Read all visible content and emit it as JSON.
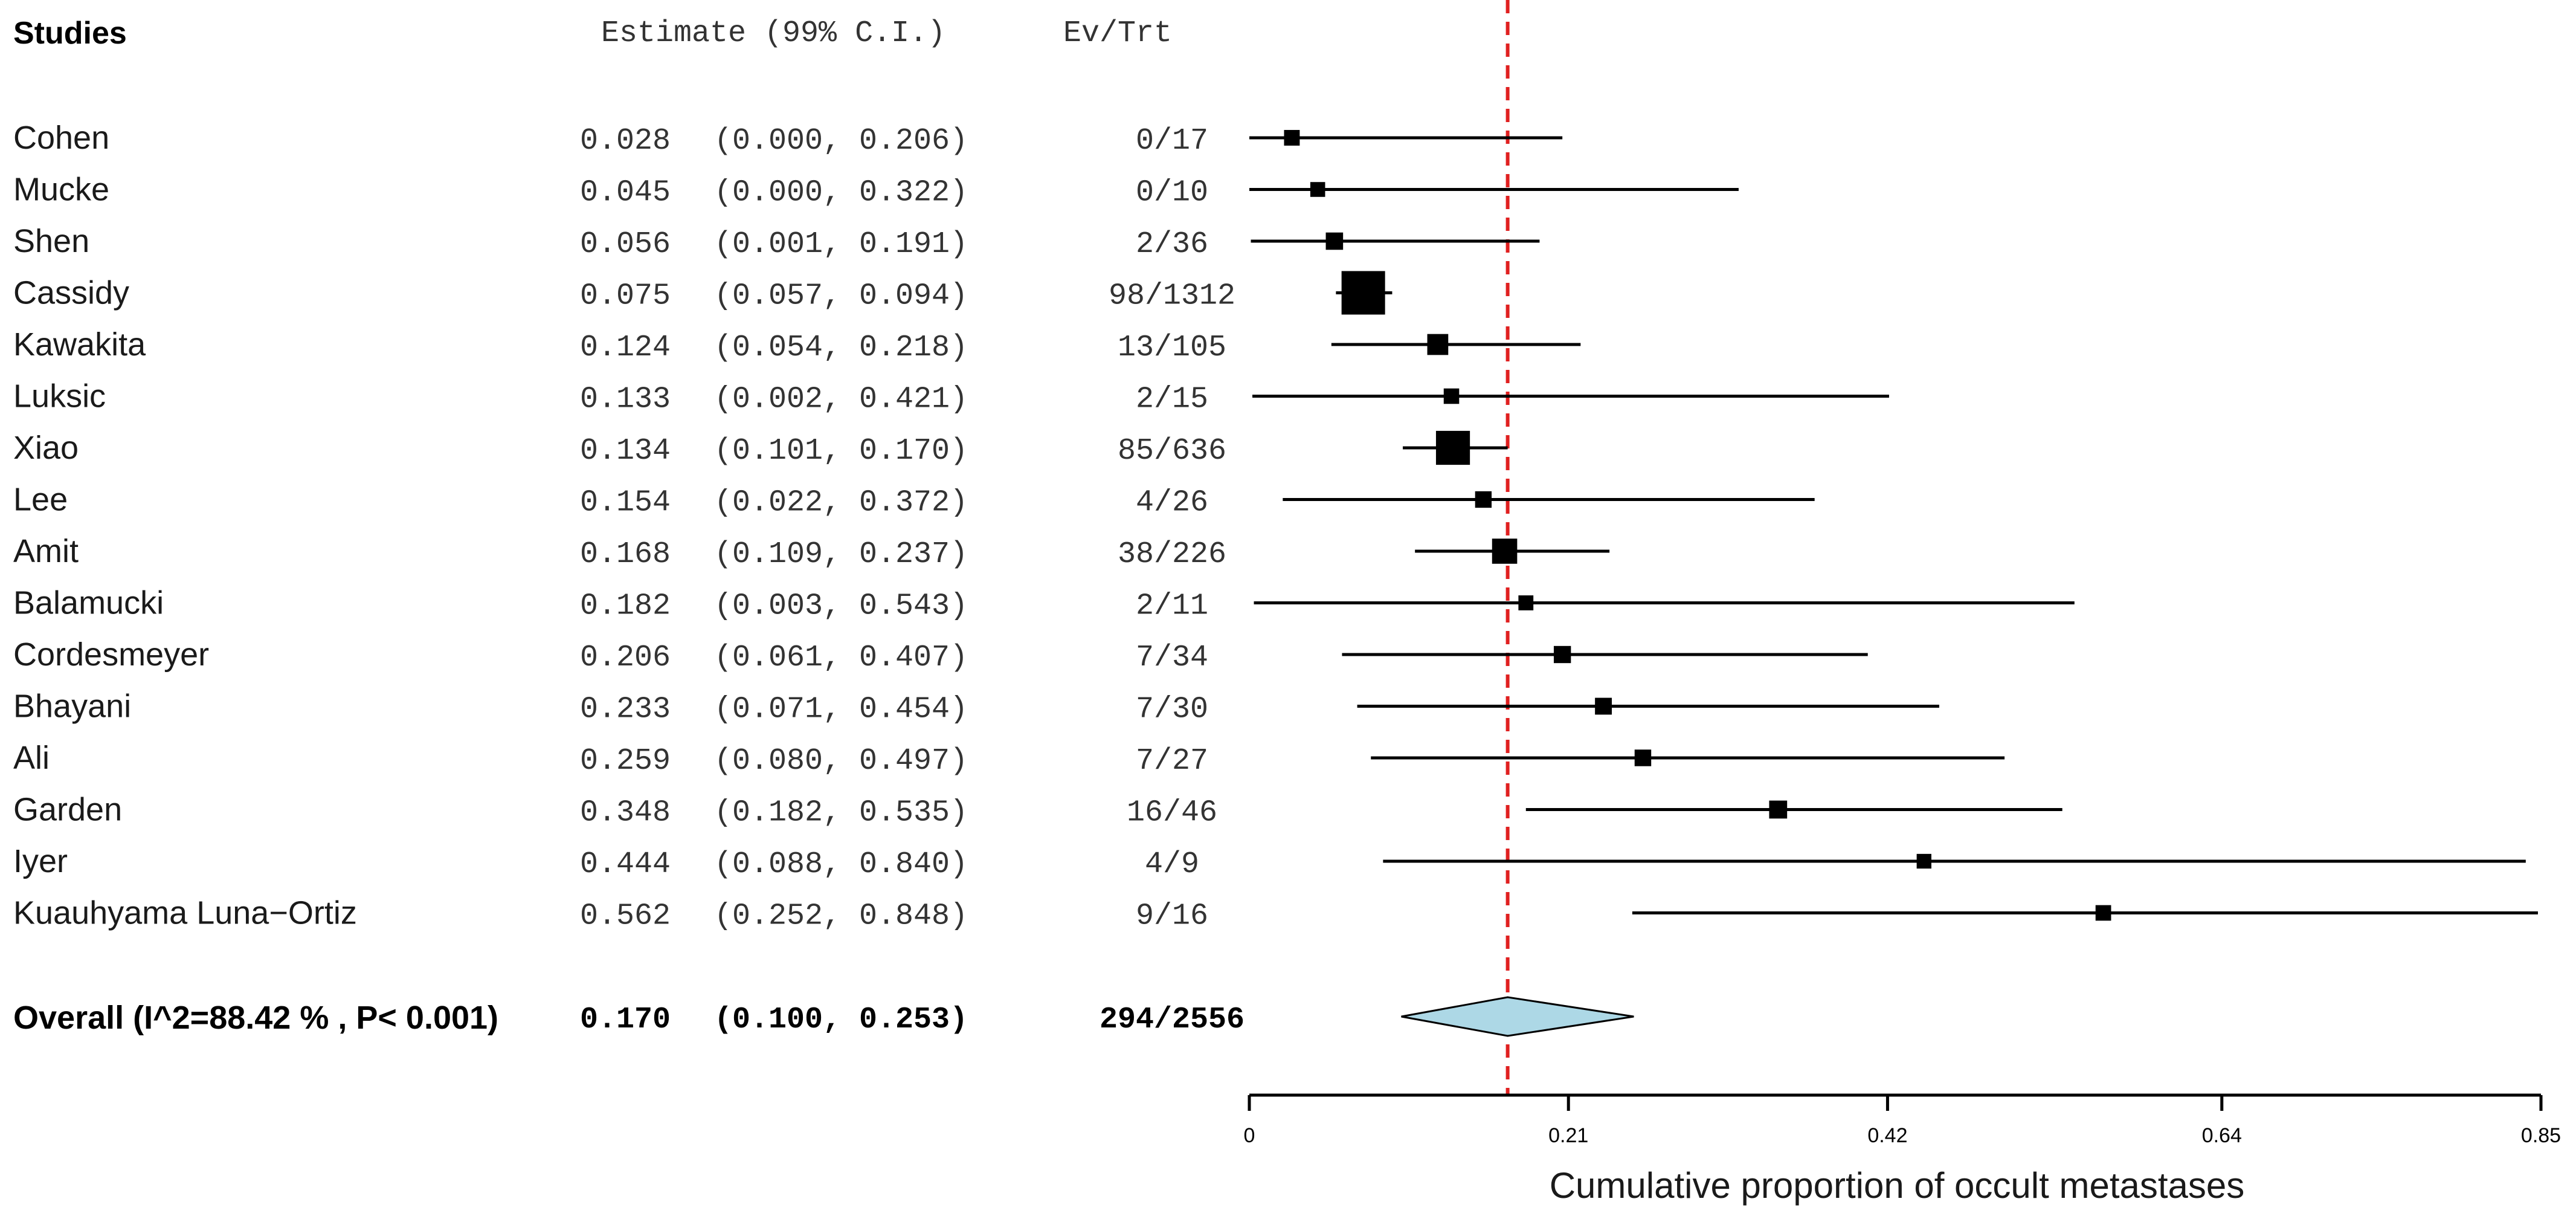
{
  "chart_data": {
    "type": "forest",
    "headers": {
      "studies": "Studies",
      "estimate": "Estimate (99% C.I.)",
      "events": "Ev/Trt"
    },
    "xlabel": "Cumulative proportion of occult metastases",
    "xlim": [
      0,
      0.85
    ],
    "ticks": [
      0,
      0.21,
      0.42,
      0.64,
      0.85
    ],
    "tick_labels": [
      "0",
      "0.21",
      "0.42",
      "0.64",
      "0.85"
    ],
    "reference_line": 0.17,
    "colors": {
      "reference": "#e02020",
      "diamond_fill": "#add8e6",
      "marker": "#000000"
    },
    "studies": [
      {
        "name": "Cohen",
        "est": 0.028,
        "lo": 0.0,
        "hi": 0.206,
        "est_text": "0.028",
        "ci_text": "(0.000, 0.206)",
        "ev_text": "0/17",
        "n": 17
      },
      {
        "name": "Mucke",
        "est": 0.045,
        "lo": 0.0,
        "hi": 0.322,
        "est_text": "0.045",
        "ci_text": "(0.000, 0.322)",
        "ev_text": "0/10",
        "n": 10
      },
      {
        "name": "Shen",
        "est": 0.056,
        "lo": 0.001,
        "hi": 0.191,
        "est_text": "0.056",
        "ci_text": "(0.001, 0.191)",
        "ev_text": "2/36",
        "n": 36
      },
      {
        "name": "Cassidy",
        "est": 0.075,
        "lo": 0.057,
        "hi": 0.094,
        "est_text": "0.075",
        "ci_text": "(0.057, 0.094)",
        "ev_text": "98/1312",
        "n": 1312
      },
      {
        "name": "Kawakita",
        "est": 0.124,
        "lo": 0.054,
        "hi": 0.218,
        "est_text": "0.124",
        "ci_text": "(0.054, 0.218)",
        "ev_text": "13/105",
        "n": 105
      },
      {
        "name": "Luksic",
        "est": 0.133,
        "lo": 0.002,
        "hi": 0.421,
        "est_text": "0.133",
        "ci_text": "(0.002, 0.421)",
        "ev_text": "2/15",
        "n": 15
      },
      {
        "name": "Xiao",
        "est": 0.134,
        "lo": 0.101,
        "hi": 0.17,
        "est_text": "0.134",
        "ci_text": "(0.101, 0.170)",
        "ev_text": "85/636",
        "n": 636
      },
      {
        "name": "Lee",
        "est": 0.154,
        "lo": 0.022,
        "hi": 0.372,
        "est_text": "0.154",
        "ci_text": "(0.022, 0.372)",
        "ev_text": "4/26",
        "n": 26
      },
      {
        "name": "Amit",
        "est": 0.168,
        "lo": 0.109,
        "hi": 0.237,
        "est_text": "0.168",
        "ci_text": "(0.109, 0.237)",
        "ev_text": "38/226",
        "n": 226
      },
      {
        "name": "Balamucki",
        "est": 0.182,
        "lo": 0.003,
        "hi": 0.543,
        "est_text": "0.182",
        "ci_text": "(0.003, 0.543)",
        "ev_text": "2/11",
        "n": 11
      },
      {
        "name": "Cordesmeyer",
        "est": 0.206,
        "lo": 0.061,
        "hi": 0.407,
        "est_text": "0.206",
        "ci_text": "(0.061, 0.407)",
        "ev_text": "7/34",
        "n": 34
      },
      {
        "name": "Bhayani",
        "est": 0.233,
        "lo": 0.071,
        "hi": 0.454,
        "est_text": "0.233",
        "ci_text": "(0.071, 0.454)",
        "ev_text": "7/30",
        "n": 30
      },
      {
        "name": "Ali",
        "est": 0.259,
        "lo": 0.08,
        "hi": 0.497,
        "est_text": "0.259",
        "ci_text": "(0.080, 0.497)",
        "ev_text": "7/27",
        "n": 27
      },
      {
        "name": "Garden",
        "est": 0.348,
        "lo": 0.182,
        "hi": 0.535,
        "est_text": "0.348",
        "ci_text": "(0.182, 0.535)",
        "ev_text": "16/46",
        "n": 46
      },
      {
        "name": "Iyer",
        "est": 0.444,
        "lo": 0.088,
        "hi": 0.84,
        "est_text": "0.444",
        "ci_text": "(0.088, 0.840)",
        "ev_text": "4/9",
        "n": 9
      },
      {
        "name": "Kuauhyama Luna−Ortiz",
        "est": 0.562,
        "lo": 0.252,
        "hi": 0.848,
        "est_text": "0.562",
        "ci_text": "(0.252, 0.848)",
        "ev_text": "9/16",
        "n": 16
      }
    ],
    "overall": {
      "label": "Overall (I^2=88.42 % , P< 0.001)",
      "est": 0.17,
      "lo": 0.1,
      "hi": 0.253,
      "est_text": "0.170",
      "ci_text": "(0.100, 0.253)",
      "ev_text": "294/2556"
    }
  }
}
